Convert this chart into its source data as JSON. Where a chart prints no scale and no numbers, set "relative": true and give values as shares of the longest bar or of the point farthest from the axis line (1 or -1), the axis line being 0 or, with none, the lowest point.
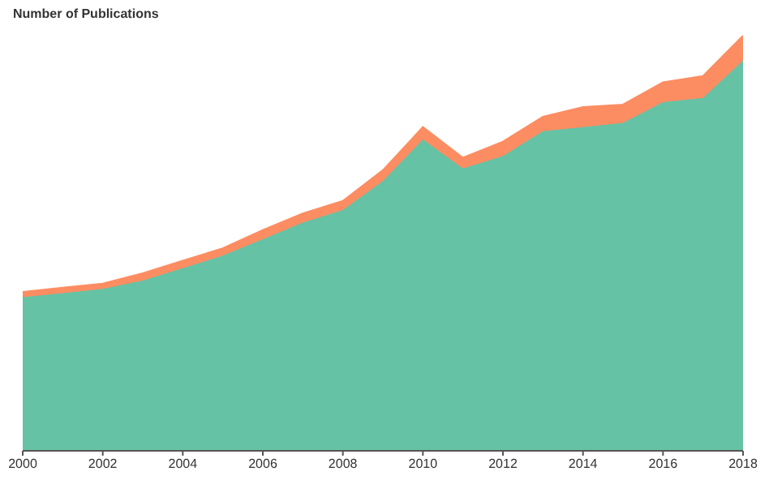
{
  "chart_data": {
    "type": "area",
    "stacked": true,
    "relative": true,
    "ylabel": "Number of Publications",
    "x": [
      2000,
      2001,
      2002,
      2003,
      2004,
      2005,
      2006,
      2007,
      2008,
      2009,
      2010,
      2011,
      2012,
      2013,
      2014,
      2015,
      2016,
      2017,
      2018
    ],
    "xlim": [
      2000,
      2018
    ],
    "xticks": [
      2000,
      2002,
      2004,
      2006,
      2008,
      2010,
      2012,
      2014,
      2016,
      2018
    ],
    "series": [
      {
        "color": "#66c2a5",
        "values": [
          0.37,
          0.38,
          0.39,
          0.41,
          0.44,
          0.47,
          0.51,
          0.55,
          0.58,
          0.65,
          0.75,
          0.68,
          0.71,
          0.77,
          0.78,
          0.79,
          0.84,
          0.85,
          0.94
        ]
      },
      {
        "color": "#fc8d62",
        "values": [
          0.013,
          0.013,
          0.013,
          0.018,
          0.018,
          0.018,
          0.022,
          0.022,
          0.022,
          0.026,
          0.03,
          0.026,
          0.035,
          0.035,
          0.048,
          0.044,
          0.048,
          0.053,
          0.06
        ]
      }
    ],
    "grid": false,
    "legend": false
  }
}
